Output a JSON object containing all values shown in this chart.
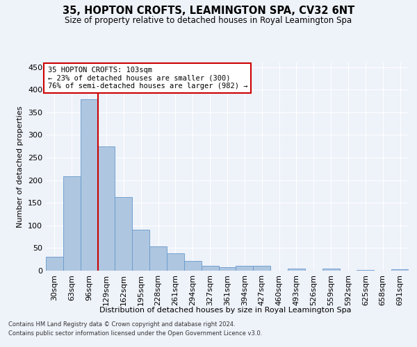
{
  "title": "35, HOPTON CROFTS, LEAMINGTON SPA, CV32 6NT",
  "subtitle": "Size of property relative to detached houses in Royal Leamington Spa",
  "xlabel": "Distribution of detached houses by size in Royal Leamington Spa",
  "ylabel": "Number of detached properties",
  "footer_line1": "Contains HM Land Registry data © Crown copyright and database right 2024.",
  "footer_line2": "Contains public sector information licensed under the Open Government Licence v3.0.",
  "annotation_line1": "35 HOPTON CROFTS: 103sqm",
  "annotation_line2": "← 23% of detached houses are smaller (300)",
  "annotation_line3": "76% of semi-detached houses are larger (982) →",
  "bar_color": "#aec6e0",
  "bar_edge_color": "#6699cc",
  "vline_color": "#cc0000",
  "background_color": "#eef2f9",
  "grid_color": "#ffffff",
  "categories": [
    "30sqm",
    "63sqm",
    "96sqm",
    "129sqm",
    "162sqm",
    "195sqm",
    "228sqm",
    "261sqm",
    "294sqm",
    "327sqm",
    "361sqm",
    "394sqm",
    "427sqm",
    "460sqm",
    "493sqm",
    "526sqm",
    "559sqm",
    "592sqm",
    "625sqm",
    "658sqm",
    "691sqm"
  ],
  "values": [
    31,
    209,
    378,
    275,
    162,
    90,
    53,
    39,
    21,
    11,
    7,
    11,
    10,
    0,
    4,
    0,
    5,
    0,
    2,
    0,
    3
  ],
  "vline_x_index": 2,
  "ylim": [
    0,
    460
  ],
  "yticks": [
    0,
    50,
    100,
    150,
    200,
    250,
    300,
    350,
    400,
    450
  ]
}
